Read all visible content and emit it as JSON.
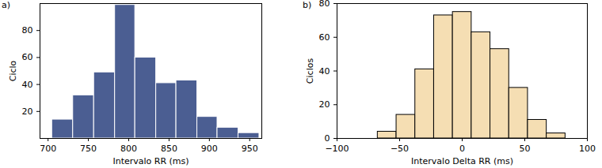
{
  "chart_data": [
    {
      "type": "histogram",
      "title": "a)",
      "x_label": "Intervalo RR (ms)",
      "y_label": "Ciclo",
      "bins": [
        705,
        731,
        757,
        783,
        808,
        834,
        859,
        885,
        910,
        936,
        962
      ],
      "values": [
        14,
        32,
        49,
        99,
        60,
        41,
        43,
        16,
        8,
        4
      ],
      "color": "#4b5e92",
      "xlim": [
        690,
        965
      ],
      "xticks": [
        700,
        750,
        800,
        850,
        900,
        950
      ],
      "ylim": [
        0,
        100
      ],
      "yticks": [
        20,
        40,
        60,
        80
      ]
    },
    {
      "type": "histogram",
      "title": "b)",
      "x_label": "Intervalo Delta RR (ms)",
      "y_label": "Ciclos",
      "bins": [
        -67.5,
        -52.5,
        -37.5,
        -22.5,
        -7.5,
        7.5,
        22.5,
        37.5,
        52.5,
        67.5,
        82.5
      ],
      "values": [
        4,
        14,
        41,
        73,
        75,
        63,
        53,
        30,
        11,
        3
      ],
      "color": "#f5deb3",
      "xlim": [
        -100,
        100
      ],
      "xticks": [
        -100,
        -50,
        0,
        50,
        100
      ],
      "ylim": [
        0,
        80
      ],
      "yticks": [
        0,
        20,
        40,
        60,
        80
      ]
    }
  ]
}
